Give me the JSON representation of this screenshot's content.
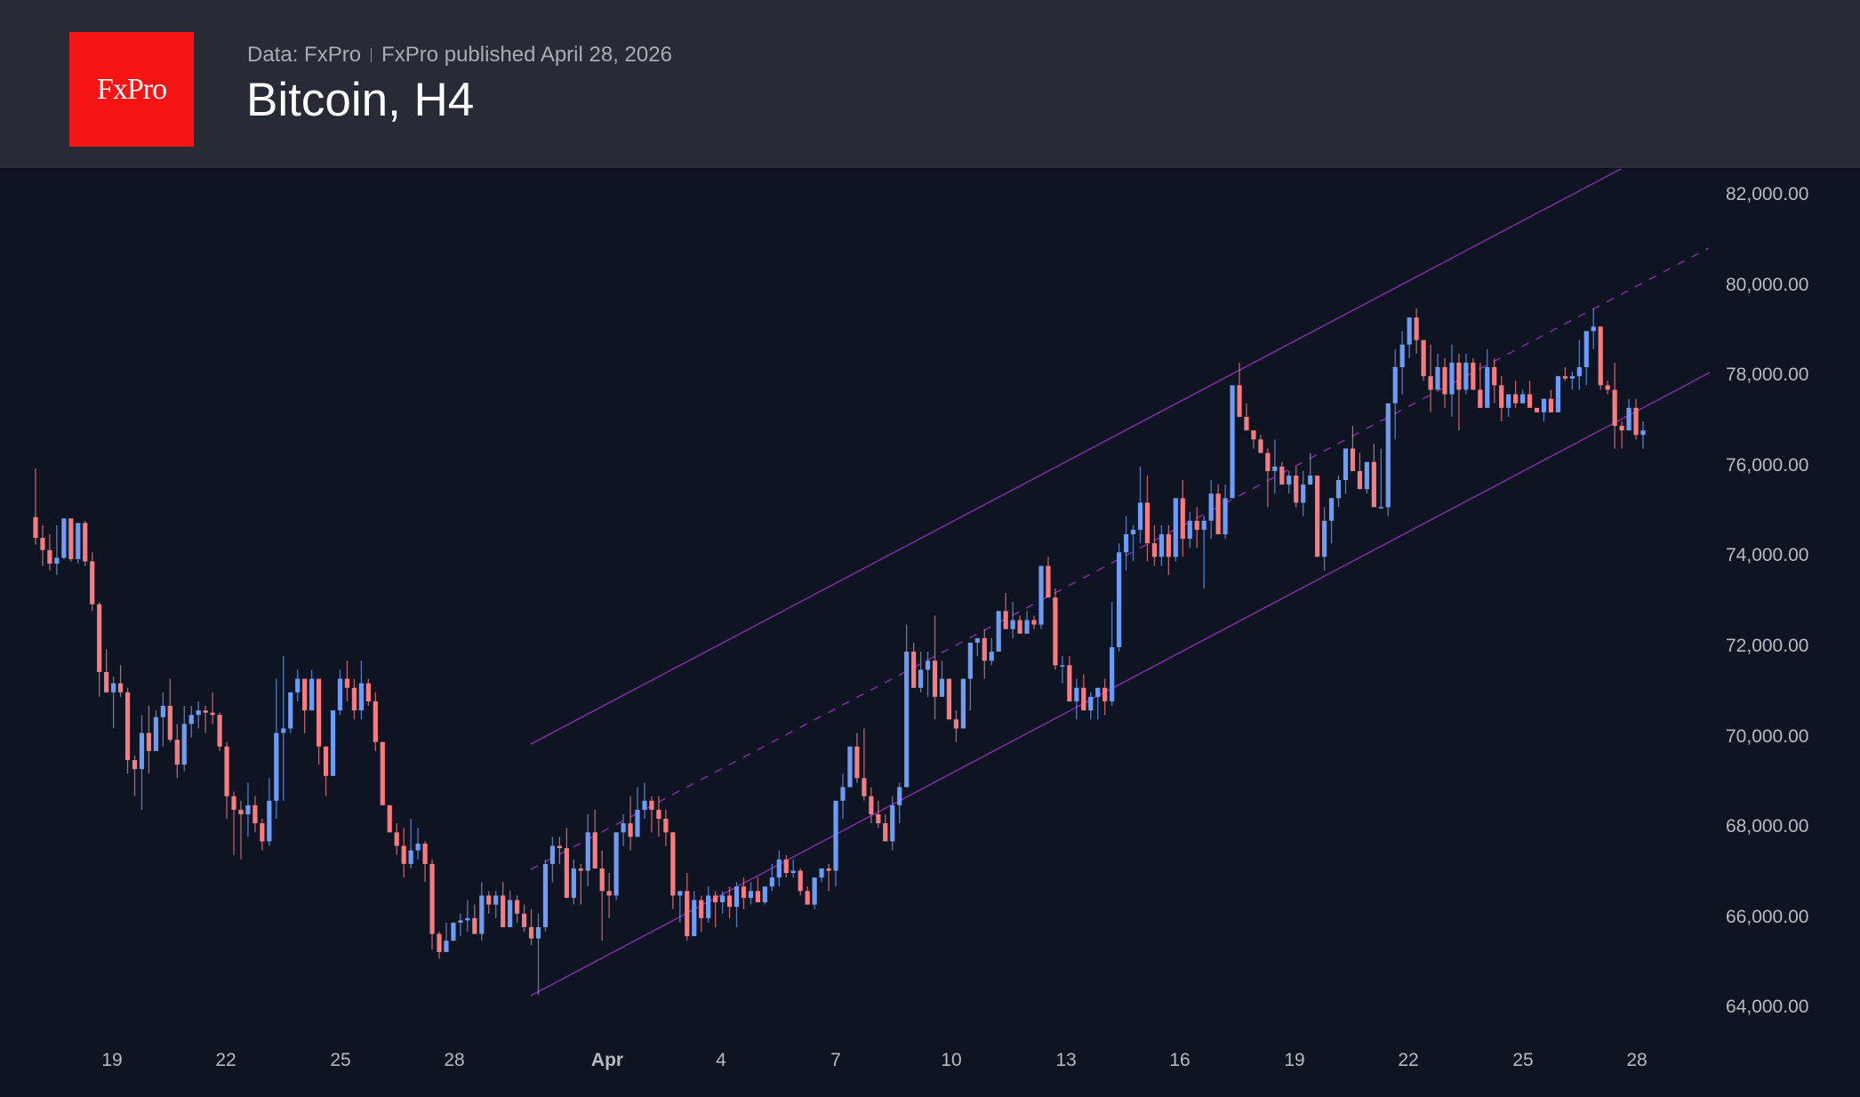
{
  "header": {
    "logo_text": "FxPro",
    "source": "Data: FxPro",
    "published": "FxPro published April 28, 2026",
    "title": "Bitcoin, H4"
  },
  "colors": {
    "header_bg": "#282b36",
    "chart_bg": "#0e1421",
    "logo_bg": "#f41414",
    "bull": "#6b9cf7",
    "bear": "#f77c80",
    "channel": "#7b2a9e"
  },
  "chart_data": {
    "type": "candlestick",
    "title": "Bitcoin, H4",
    "xlabel": "",
    "ylabel": "",
    "ylim": [
      63000,
      82800
    ],
    "y_ticks": [
      "82,000.00",
      "80,000.00",
      "78,000.00",
      "76,000.00",
      "74,000.00",
      "72,000.00",
      "70,000.00",
      "68,000.00",
      "66,000.00",
      "64,000.00"
    ],
    "x_ticks": [
      {
        "label": "19",
        "bold": false
      },
      {
        "label": "22",
        "bold": false
      },
      {
        "label": "25",
        "bold": false
      },
      {
        "label": "28",
        "bold": false
      },
      {
        "label": "Apr",
        "bold": true
      },
      {
        "label": "4",
        "bold": false
      },
      {
        "label": "7",
        "bold": false
      },
      {
        "label": "10",
        "bold": false
      },
      {
        "label": "13",
        "bold": false
      },
      {
        "label": "16",
        "bold": false
      },
      {
        "label": "19",
        "bold": false
      },
      {
        "label": "22",
        "bold": false
      },
      {
        "label": "25",
        "bold": false
      },
      {
        "label": "28",
        "bold": false
      }
    ],
    "grid": false,
    "channel": {
      "upper": [
        [
          597,
          837
        ],
        [
          1823,
          190
        ]
      ],
      "middle_dashed": [
        [
          597,
          978
        ],
        [
          1922,
          279
        ]
      ],
      "lower": [
        [
          597,
          1120
        ],
        [
          1923,
          419
        ]
      ],
      "note": "ascending price channel from ~Mar 30 to Apr 28"
    },
    "candles": [
      [
        74880,
        75960,
        74270,
        74420
      ],
      [
        74420,
        74700,
        73800,
        74150
      ],
      [
        74150,
        74500,
        73700,
        73850
      ],
      [
        73850,
        74700,
        73600,
        73980
      ],
      [
        73980,
        74800,
        73950,
        74850
      ],
      [
        74850,
        74800,
        73900,
        73950
      ],
      [
        73950,
        74700,
        73850,
        74750
      ],
      [
        74750,
        74800,
        73800,
        73900
      ],
      [
        73900,
        74100,
        72800,
        72950
      ],
      [
        72950,
        73000,
        70900,
        71450
      ],
      [
        71450,
        71950,
        71100,
        71000
      ],
      [
        71000,
        71350,
        70200,
        71200
      ],
      [
        71200,
        71600,
        70900,
        71000
      ],
      [
        71000,
        71100,
        69200,
        69500
      ],
      [
        69500,
        69600,
        68700,
        69300
      ],
      [
        69300,
        70500,
        68400,
        70100
      ],
      [
        70100,
        70700,
        69200,
        69700
      ],
      [
        69700,
        70600,
        69800,
        70450
      ],
      [
        70450,
        71000,
        69800,
        70700
      ],
      [
        70700,
        71300,
        69900,
        69950
      ],
      [
        69950,
        70300,
        69100,
        69400
      ],
      [
        69400,
        70700,
        69250,
        70300
      ],
      [
        70300,
        70700,
        70000,
        70500
      ],
      [
        70500,
        70800,
        70200,
        70600
      ],
      [
        70600,
        70700,
        70100,
        70550
      ],
      [
        70550,
        71000,
        70300,
        70500
      ],
      [
        70500,
        70550,
        69700,
        69800
      ],
      [
        69800,
        69900,
        68200,
        68700
      ],
      [
        68700,
        68800,
        67400,
        68400
      ],
      [
        68400,
        68600,
        67300,
        68300
      ],
      [
        68300,
        69000,
        67800,
        68500
      ],
      [
        68500,
        68700,
        67900,
        68100
      ],
      [
        68100,
        68200,
        67500,
        67700
      ],
      [
        67700,
        69100,
        67600,
        68600
      ],
      [
        68600,
        71300,
        68200,
        70100
      ],
      [
        70100,
        71800,
        68600,
        70200
      ],
      [
        70200,
        70800,
        70100,
        71000
      ],
      [
        71000,
        71500,
        70800,
        71300
      ],
      [
        71300,
        71300,
        70100,
        70600
      ],
      [
        70600,
        71500,
        70600,
        71300
      ],
      [
        71300,
        71300,
        69400,
        69800
      ],
      [
        69800,
        69500,
        68700,
        69150
      ],
      [
        69150,
        70100,
        69200,
        70600
      ],
      [
        70600,
        71500,
        70500,
        71300
      ],
      [
        71300,
        71700,
        70800,
        71100
      ],
      [
        71100,
        71300,
        70400,
        70600
      ],
      [
        70600,
        71700,
        70400,
        71200
      ],
      [
        71200,
        71300,
        70700,
        70800
      ],
      [
        70800,
        71000,
        69700,
        69900
      ],
      [
        69900,
        69900,
        68500,
        68500
      ],
      [
        68500,
        68400,
        67900,
        67900
      ],
      [
        67900,
        68100,
        67400,
        67600
      ],
      [
        67600,
        68000,
        66900,
        67200
      ],
      [
        67200,
        68200,
        67100,
        67500
      ],
      [
        67500,
        68000,
        67300,
        67650
      ],
      [
        67650,
        67700,
        66800,
        67200
      ],
      [
        67200,
        67300,
        65300,
        65650
      ],
      [
        65650,
        65700,
        65100,
        65250
      ],
      [
        65250,
        65900,
        65300,
        65500
      ],
      [
        65500,
        65500,
        65800,
        65900
      ],
      [
        65900,
        66100,
        65600,
        65950
      ],
      [
        65950,
        66400,
        65700,
        66000
      ],
      [
        66000,
        66300,
        65700,
        65650
      ],
      [
        65650,
        66800,
        65500,
        66500
      ],
      [
        66500,
        66600,
        66100,
        66300
      ],
      [
        66300,
        66600,
        66000,
        66500
      ],
      [
        66500,
        66800,
        65900,
        65800
      ],
      [
        65800,
        66600,
        65800,
        66400
      ],
      [
        66400,
        66500,
        65900,
        66100
      ],
      [
        66100,
        66300,
        65700,
        65800
      ],
      [
        65800,
        66200,
        65400,
        65550
      ],
      [
        65550,
        66100,
        64300,
        65800
      ],
      [
        65800,
        67300,
        65700,
        67200
      ],
      [
        67200,
        67800,
        66800,
        67600
      ],
      [
        67600,
        67800,
        67200,
        67550
      ],
      [
        67550,
        68000,
        66600,
        66450
      ],
      [
        66450,
        67300,
        66300,
        67100
      ],
      [
        67100,
        67200,
        66300,
        67050
      ],
      [
        67050,
        68300,
        66700,
        67900
      ],
      [
        67900,
        68400,
        67300,
        67100
      ],
      [
        67100,
        67500,
        65500,
        66600
      ],
      [
        66600,
        67000,
        66000,
        66500
      ],
      [
        66500,
        67800,
        66400,
        67900
      ],
      [
        67900,
        68300,
        67600,
        68100
      ],
      [
        68100,
        68700,
        67500,
        67800
      ],
      [
        67800,
        68900,
        67900,
        68400
      ],
      [
        68400,
        69000,
        68200,
        68600
      ],
      [
        68600,
        68700,
        67900,
        68400
      ],
      [
        68400,
        68700,
        67800,
        68200
      ],
      [
        68200,
        68400,
        67600,
        67900
      ],
      [
        67900,
        67800,
        66200,
        66500
      ],
      [
        66500,
        66500,
        65900,
        66600
      ],
      [
        66600,
        67000,
        65500,
        65600
      ],
      [
        65600,
        66600,
        65700,
        66400
      ],
      [
        66400,
        66500,
        65700,
        66000
      ],
      [
        66000,
        66700,
        65900,
        66500
      ],
      [
        66500,
        66600,
        65800,
        66350
      ],
      [
        66350,
        66600,
        66100,
        66500
      ],
      [
        66500,
        66700,
        66000,
        66250
      ],
      [
        66250,
        66800,
        65800,
        66700
      ],
      [
        66700,
        66900,
        66200,
        66450
      ],
      [
        66450,
        66800,
        66300,
        66600
      ],
      [
        66600,
        66900,
        66400,
        66350
      ],
      [
        66350,
        66700,
        66300,
        66700
      ],
      [
        66700,
        67200,
        66600,
        66900
      ],
      [
        66900,
        67500,
        66700,
        67300
      ],
      [
        67300,
        67400,
        66900,
        67000
      ],
      [
        67000,
        67300,
        66900,
        67050
      ],
      [
        67050,
        67100,
        66500,
        66600
      ],
      [
        66600,
        66700,
        66300,
        66300
      ],
      [
        66300,
        66900,
        66200,
        66900
      ],
      [
        66900,
        67000,
        66800,
        67100
      ],
      [
        67100,
        67200,
        66600,
        67050
      ],
      [
        67050,
        68300,
        66700,
        68600
      ],
      [
        68600,
        69200,
        68200,
        68900
      ],
      [
        68900,
        69800,
        68900,
        69800
      ],
      [
        69800,
        70100,
        69000,
        69100
      ],
      [
        69100,
        70200,
        68600,
        68700
      ],
      [
        68700,
        68900,
        68100,
        68300
      ],
      [
        68300,
        68600,
        68000,
        68100
      ],
      [
        68100,
        68300,
        67800,
        67700
      ],
      [
        67700,
        68700,
        67500,
        68500
      ],
      [
        68500,
        69000,
        68100,
        68900
      ],
      [
        68900,
        72500,
        68900,
        71900
      ],
      [
        71900,
        72100,
        71100,
        71100
      ],
      [
        71100,
        71900,
        71000,
        71500
      ],
      [
        71500,
        71900,
        70900,
        71700
      ],
      [
        71700,
        72700,
        70400,
        70900
      ],
      [
        70900,
        71700,
        71100,
        71300
      ],
      [
        71300,
        71300,
        70400,
        70400
      ],
      [
        70400,
        70600,
        69900,
        70200
      ],
      [
        70200,
        71200,
        70300,
        71300
      ],
      [
        71300,
        72100,
        70600,
        72100
      ],
      [
        72100,
        72200,
        71800,
        72200
      ],
      [
        72200,
        72400,
        71300,
        71700
      ],
      [
        71700,
        72200,
        71600,
        71900
      ],
      [
        71900,
        72800,
        71900,
        72800
      ],
      [
        72800,
        73200,
        72600,
        72400
      ],
      [
        72400,
        73000,
        72200,
        72600
      ],
      [
        72600,
        72700,
        72300,
        72300
      ],
      [
        72300,
        72800,
        72400,
        72600
      ],
      [
        72600,
        72700,
        72400,
        72500
      ],
      [
        72500,
        73800,
        72400,
        73800
      ],
      [
        73800,
        74000,
        73100,
        73100
      ],
      [
        73100,
        73300,
        71500,
        71600
      ],
      [
        71600,
        71800,
        71200,
        71600
      ],
      [
        71600,
        71800,
        70900,
        70800
      ],
      [
        70800,
        71300,
        70400,
        71100
      ],
      [
        71100,
        71400,
        70700,
        70600
      ],
      [
        70600,
        71000,
        70400,
        70900
      ],
      [
        70900,
        71100,
        70400,
        71100
      ],
      [
        71100,
        71300,
        70500,
        70800
      ],
      [
        70800,
        73000,
        70700,
        72000
      ],
      [
        72000,
        74300,
        71900,
        74100
      ],
      [
        74100,
        74900,
        73700,
        74500
      ],
      [
        74500,
        74700,
        73900,
        74600
      ],
      [
        74600,
        76000,
        74300,
        75200
      ],
      [
        75200,
        75800,
        73900,
        74300
      ],
      [
        74300,
        74700,
        73800,
        74000
      ],
      [
        74000,
        74700,
        73800,
        74500
      ],
      [
        74500,
        74700,
        73600,
        74000
      ],
      [
        74000,
        75300,
        73900,
        75300
      ],
      [
        75300,
        75700,
        74000,
        74400
      ],
      [
        74400,
        75000,
        74200,
        74800
      ],
      [
        74800,
        75100,
        74200,
        74600
      ],
      [
        74600,
        74900,
        73300,
        74800
      ],
      [
        74800,
        75700,
        74400,
        75400
      ],
      [
        75400,
        75600,
        74900,
        74500
      ],
      [
        74500,
        75600,
        74400,
        75300
      ],
      [
        75300,
        76500,
        75300,
        77800
      ],
      [
        77800,
        78300,
        77500,
        77100
      ],
      [
        77100,
        77400,
        76800,
        76800
      ],
      [
        76800,
        76600,
        76400,
        76600
      ],
      [
        76600,
        76700,
        76500,
        76300
      ],
      [
        76300,
        76400,
        75100,
        75900
      ],
      [
        75900,
        76600,
        75400,
        76000
      ],
      [
        76000,
        76100,
        75700,
        75600
      ],
      [
        75600,
        75900,
        75400,
        75800
      ],
      [
        75800,
        76000,
        75100,
        75200
      ],
      [
        75200,
        75900,
        74900,
        75600
      ],
      [
        75600,
        76300,
        75600,
        75800
      ],
      [
        75800,
        75700,
        74000,
        74000
      ],
      [
        74000,
        75100,
        73700,
        74800
      ],
      [
        74800,
        75300,
        74300,
        75300
      ],
      [
        75300,
        75800,
        75100,
        75700
      ],
      [
        75700,
        76400,
        75400,
        76400
      ],
      [
        76400,
        76900,
        76300,
        75900
      ],
      [
        75900,
        76300,
        75800,
        75500
      ],
      [
        75500,
        76100,
        75400,
        76100
      ],
      [
        76100,
        76500,
        75700,
        75100
      ],
      [
        75100,
        76400,
        75100,
        75100
      ],
      [
        75100,
        77400,
        74900,
        77400
      ],
      [
        77400,
        78600,
        76600,
        78200
      ],
      [
        78200,
        79000,
        77600,
        78700
      ],
      [
        78700,
        79300,
        78400,
        79300
      ],
      [
        79300,
        79500,
        78500,
        78800
      ],
      [
        78800,
        78800,
        77900,
        78000
      ],
      [
        78000,
        78700,
        77200,
        77700
      ],
      [
        77700,
        78500,
        77800,
        78200
      ],
      [
        78200,
        78400,
        77300,
        77600
      ],
      [
        77600,
        78700,
        77100,
        78300
      ],
      [
        78300,
        78500,
        76800,
        77700
      ],
      [
        77700,
        78500,
        77600,
        78300
      ],
      [
        78300,
        78400,
        77800,
        77700
      ],
      [
        77700,
        78300,
        77600,
        77300
      ],
      [
        77300,
        78600,
        77400,
        78200
      ],
      [
        78200,
        78400,
        77400,
        77800
      ],
      [
        77800,
        78000,
        77000,
        77300
      ],
      [
        77300,
        77600,
        77100,
        77600
      ],
      [
        77600,
        77900,
        77300,
        77400
      ],
      [
        77400,
        77700,
        77500,
        77600
      ],
      [
        77600,
        77900,
        77400,
        77300
      ],
      [
        77300,
        77300,
        77200,
        77200
      ],
      [
        77200,
        77500,
        77000,
        77500
      ],
      [
        77500,
        77700,
        77300,
        77200
      ],
      [
        77200,
        78000,
        77200,
        78000
      ],
      [
        78000,
        78200,
        77900,
        77950
      ],
      [
        77950,
        78100,
        77700,
        78000
      ],
      [
        78000,
        78800,
        77700,
        78200
      ],
      [
        78200,
        78900,
        77800,
        79000
      ],
      [
        79000,
        79500,
        78600,
        79100
      ],
      [
        79100,
        79000,
        77700,
        77800
      ],
      [
        77800,
        77900,
        77600,
        77700
      ],
      [
        77700,
        78300,
        76400,
        76900
      ],
      [
        76900,
        77000,
        76400,
        76800
      ],
      [
        76800,
        77500,
        76900,
        77300
      ],
      [
        77300,
        77500,
        76600,
        76700
      ],
      [
        76700,
        77000,
        76400,
        76800
      ]
    ]
  }
}
